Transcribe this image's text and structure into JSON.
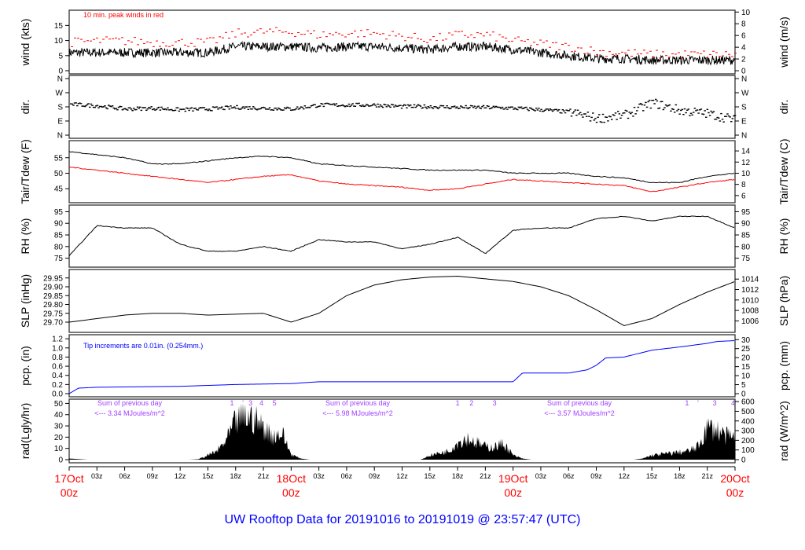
{
  "chart_data": {
    "type": "line",
    "title": "UW Rooftop Data for 20191016  to  20191019 @ 23:57:47  (UTC)",
    "hours": [
      0,
      3,
      6,
      9,
      12,
      15,
      18,
      21,
      24,
      27,
      30,
      33,
      36,
      39,
      42,
      45,
      48,
      51,
      54,
      57,
      60,
      63,
      66,
      69,
      72
    ],
    "x_tick_labels": [
      "03z",
      "06z",
      "09z",
      "12z",
      "15z",
      "18z",
      "21z",
      "03z",
      "06z",
      "09z",
      "12z",
      "15z",
      "18z",
      "21z",
      "03z",
      "06z",
      "09z",
      "12z",
      "15z",
      "18z",
      "21z"
    ],
    "date_labels": [
      {
        "day": "17Oct",
        "hour": "00z"
      },
      {
        "day": "18Oct",
        "hour": "00z"
      },
      {
        "day": "19Oct",
        "hour": "00z"
      },
      {
        "day": "20Oct",
        "hour": "00z"
      }
    ],
    "panels": [
      {
        "id": "wind",
        "ylabel": "wind (kts)",
        "ylabel_right": "wind (m/s)",
        "ylim": [
          0,
          19
        ],
        "ticks": [
          "0",
          "5",
          "10",
          "15"
        ],
        "ticks_right": [
          "0",
          "2",
          "4",
          "6",
          "8",
          "10"
        ],
        "annotation": "10 min. peak winds in red",
        "series": [
          {
            "name": "wind",
            "color": "#000000",
            "values": [
              6,
              6,
              6,
              6,
              6,
              6,
              8,
              8,
              8,
              7.5,
              8,
              8,
              7.5,
              7,
              8,
              8,
              7,
              6,
              5,
              4,
              4,
              3.5,
              3.5,
              3.5,
              3.5
            ]
          },
          {
            "name": "peak",
            "color": "#ff0000",
            "values": [
              9.5,
              10,
              10,
              9.5,
              9.5,
              9.5,
              12.5,
              13,
              13,
              12,
              12.5,
              12.5,
              11.5,
              10.5,
              12,
              12,
              10,
              9,
              8,
              6.5,
              6,
              5.5,
              5.5,
              5.5,
              5.5
            ]
          }
        ]
      },
      {
        "id": "dir",
        "ylabel": "dir.",
        "ylabel_right": "dir.",
        "ylim": [
          0,
          360
        ],
        "ticks": [
          "N",
          "E",
          "S",
          "W",
          "N"
        ],
        "ticks_right": [
          "N",
          "E",
          "S",
          "W",
          "N"
        ],
        "series": [
          {
            "name": "direction",
            "color": "#000000",
            "values": [
              200,
              190,
              170,
              175,
              165,
              170,
              180,
              175,
              170,
              195,
              195,
              195,
              185,
              185,
              180,
              180,
              175,
              165,
              150,
              110,
              130,
              210,
              160,
              140,
              100
            ]
          }
        ]
      },
      {
        "id": "temp",
        "ylabel": "Tair/Tdew (F)",
        "ylabel_right": "Tair/Tdew (C)",
        "ylim": [
          41.5,
          59.5
        ],
        "ticks": [
          "45",
          "50",
          "55"
        ],
        "ticks_right": [
          "6",
          "8",
          "10",
          "12",
          "14"
        ],
        "series": [
          {
            "name": "Tair",
            "color": "#000000",
            "values": [
              57,
              56,
              55,
              53,
              53,
              54,
              55,
              55.5,
              55,
              53,
              52.5,
              52,
              51.5,
              51,
              51,
              51,
              50,
              50,
              50,
              49,
              48.5,
              47,
              47,
              49,
              50
            ]
          },
          {
            "name": "Tdew",
            "color": "#ff0000",
            "values": [
              52,
              51,
              50,
              49,
              48,
              47,
              48,
              49,
              49.5,
              47.5,
              46.5,
              46,
              45.5,
              44.5,
              45,
              46.5,
              48,
              47.5,
              47,
              46.5,
              46,
              44,
              45.5,
              47,
              48
            ]
          }
        ]
      },
      {
        "id": "rh",
        "ylabel": "RH (%)",
        "ylabel_right": "RH (%)",
        "ylim": [
          72.5,
          96.5
        ],
        "ticks": [
          "75",
          "80",
          "85",
          "90",
          "95"
        ],
        "ticks_right": [
          "75",
          "80",
          "85",
          "90",
          "95"
        ],
        "series": [
          {
            "name": "RH",
            "color": "#000000",
            "values": [
              76,
              89,
              88,
              88,
              81,
              78,
              78,
              80,
              78,
              83,
              82,
              82,
              79,
              81,
              84,
              77,
              87,
              88,
              88,
              92,
              93,
              91,
              93,
              93,
              88
            ]
          }
        ]
      },
      {
        "id": "slp",
        "ylabel": "SLP (inHg)",
        "ylabel_right": "SLP (hPa)",
        "ylim": [
          29.66,
          29.98
        ],
        "ticks": [
          "29.70",
          "29.75",
          "29.80",
          "29.85",
          "29.90",
          "29.95"
        ],
        "ticks_right": [
          "1006",
          "1008",
          "1010",
          "1012",
          "1014"
        ],
        "series": [
          {
            "name": "SLP",
            "color": "#000000",
            "values": [
              29.7,
              29.72,
              29.74,
              29.75,
              29.75,
              29.74,
              29.745,
              29.75,
              29.7,
              29.75,
              29.85,
              29.91,
              29.94,
              29.955,
              29.96,
              29.945,
              29.93,
              29.9,
              29.85,
              29.77,
              29.68,
              29.72,
              29.8,
              29.87,
              29.93
            ]
          }
        ]
      },
      {
        "id": "pcp",
        "ylabel": "pcp. (in)",
        "ylabel_right": "pcp. (mm)",
        "ylim": [
          0,
          1.22
        ],
        "ticks": [
          "0.0",
          "0.2",
          "0.4",
          "0.6",
          "0.8",
          "1.0",
          "1.2"
        ],
        "ticks_right": [
          "0",
          "5",
          "10",
          "15",
          "20",
          "25",
          "30"
        ],
        "annotation": "Tip increments are 0.01in. (0.254mm.)",
        "series": [
          {
            "name": "cumulative precip",
            "color": "#0000ff",
            "x": [
              0,
              1,
              3,
              12,
              18,
              24,
              27,
              48,
              49,
              54,
              56,
              57,
              58,
              60,
              63,
              66,
              69,
              70,
              72
            ],
            "values": [
              0,
              0.12,
              0.14,
              0.16,
              0.2,
              0.22,
              0.26,
              0.26,
              0.45,
              0.45,
              0.52,
              0.62,
              0.78,
              0.8,
              0.95,
              1.02,
              1.1,
              1.14,
              1.16
            ]
          }
        ]
      },
      {
        "id": "rad",
        "ylabel": "rad(Lgly/hr)",
        "ylabel_right": "rad (W/m^2)",
        "ylim": [
          0,
          51
        ],
        "ticks": [
          "0",
          "10",
          "20",
          "30",
          "40",
          "50"
        ],
        "ticks_right": [
          "0",
          "100",
          "200",
          "300",
          "400",
          "500",
          "600"
        ],
        "day_sums": [
          {
            "line1": "Sum of previous day",
            "line2": "<--- 3.34 MJoules/m^2"
          },
          {
            "line1": "Sum of previous day",
            "line2": "<--- 5.98 MJoules/m^2"
          },
          {
            "line1": "Sum of previous day",
            "line2": "<--- 3.57 MJoules/m^2"
          }
        ],
        "hour_marks": [
          {
            "label": "1",
            "hour": 17.6
          },
          {
            "label": "'",
            "hour": 18.8
          },
          {
            "label": "3",
            "hour": 19.6
          },
          {
            "label": "4",
            "hour": 20.8
          },
          {
            "label": "5",
            "hour": 22.2
          },
          {
            "label": "1",
            "hour": 42
          },
          {
            "label": "2",
            "hour": 43.5
          },
          {
            "label": "3",
            "hour": 46
          },
          {
            "label": "1",
            "hour": 66.8
          },
          {
            "label": "'",
            "hour": 68
          },
          {
            "label": "3",
            "hour": 69.8
          },
          {
            "label": "4",
            "hour": 71.8
          }
        ],
        "series": [
          {
            "name": "radiation",
            "color": "#000000",
            "values": [
              1,
              0.5,
              0,
              0,
              0,
              0,
              0,
              0,
              0,
              0,
              0,
              0,
              0,
              0,
              0.5,
              4,
              8,
              18,
              35,
              40,
              38,
              30,
              22,
              25,
              5,
              1,
              0,
              0,
              0,
              0,
              0,
              0,
              0,
              0,
              0,
              0,
              0,
              0,
              0,
              4,
              6,
              8,
              16,
              20,
              16,
              12,
              12,
              15,
              4,
              1,
              0,
              0,
              0,
              0,
              0,
              0,
              0,
              0,
              0,
              0,
              0,
              0,
              1,
              4,
              5,
              6,
              7,
              8,
              12,
              30,
              28,
              22,
              20
            ]
          }
        ]
      }
    ]
  }
}
